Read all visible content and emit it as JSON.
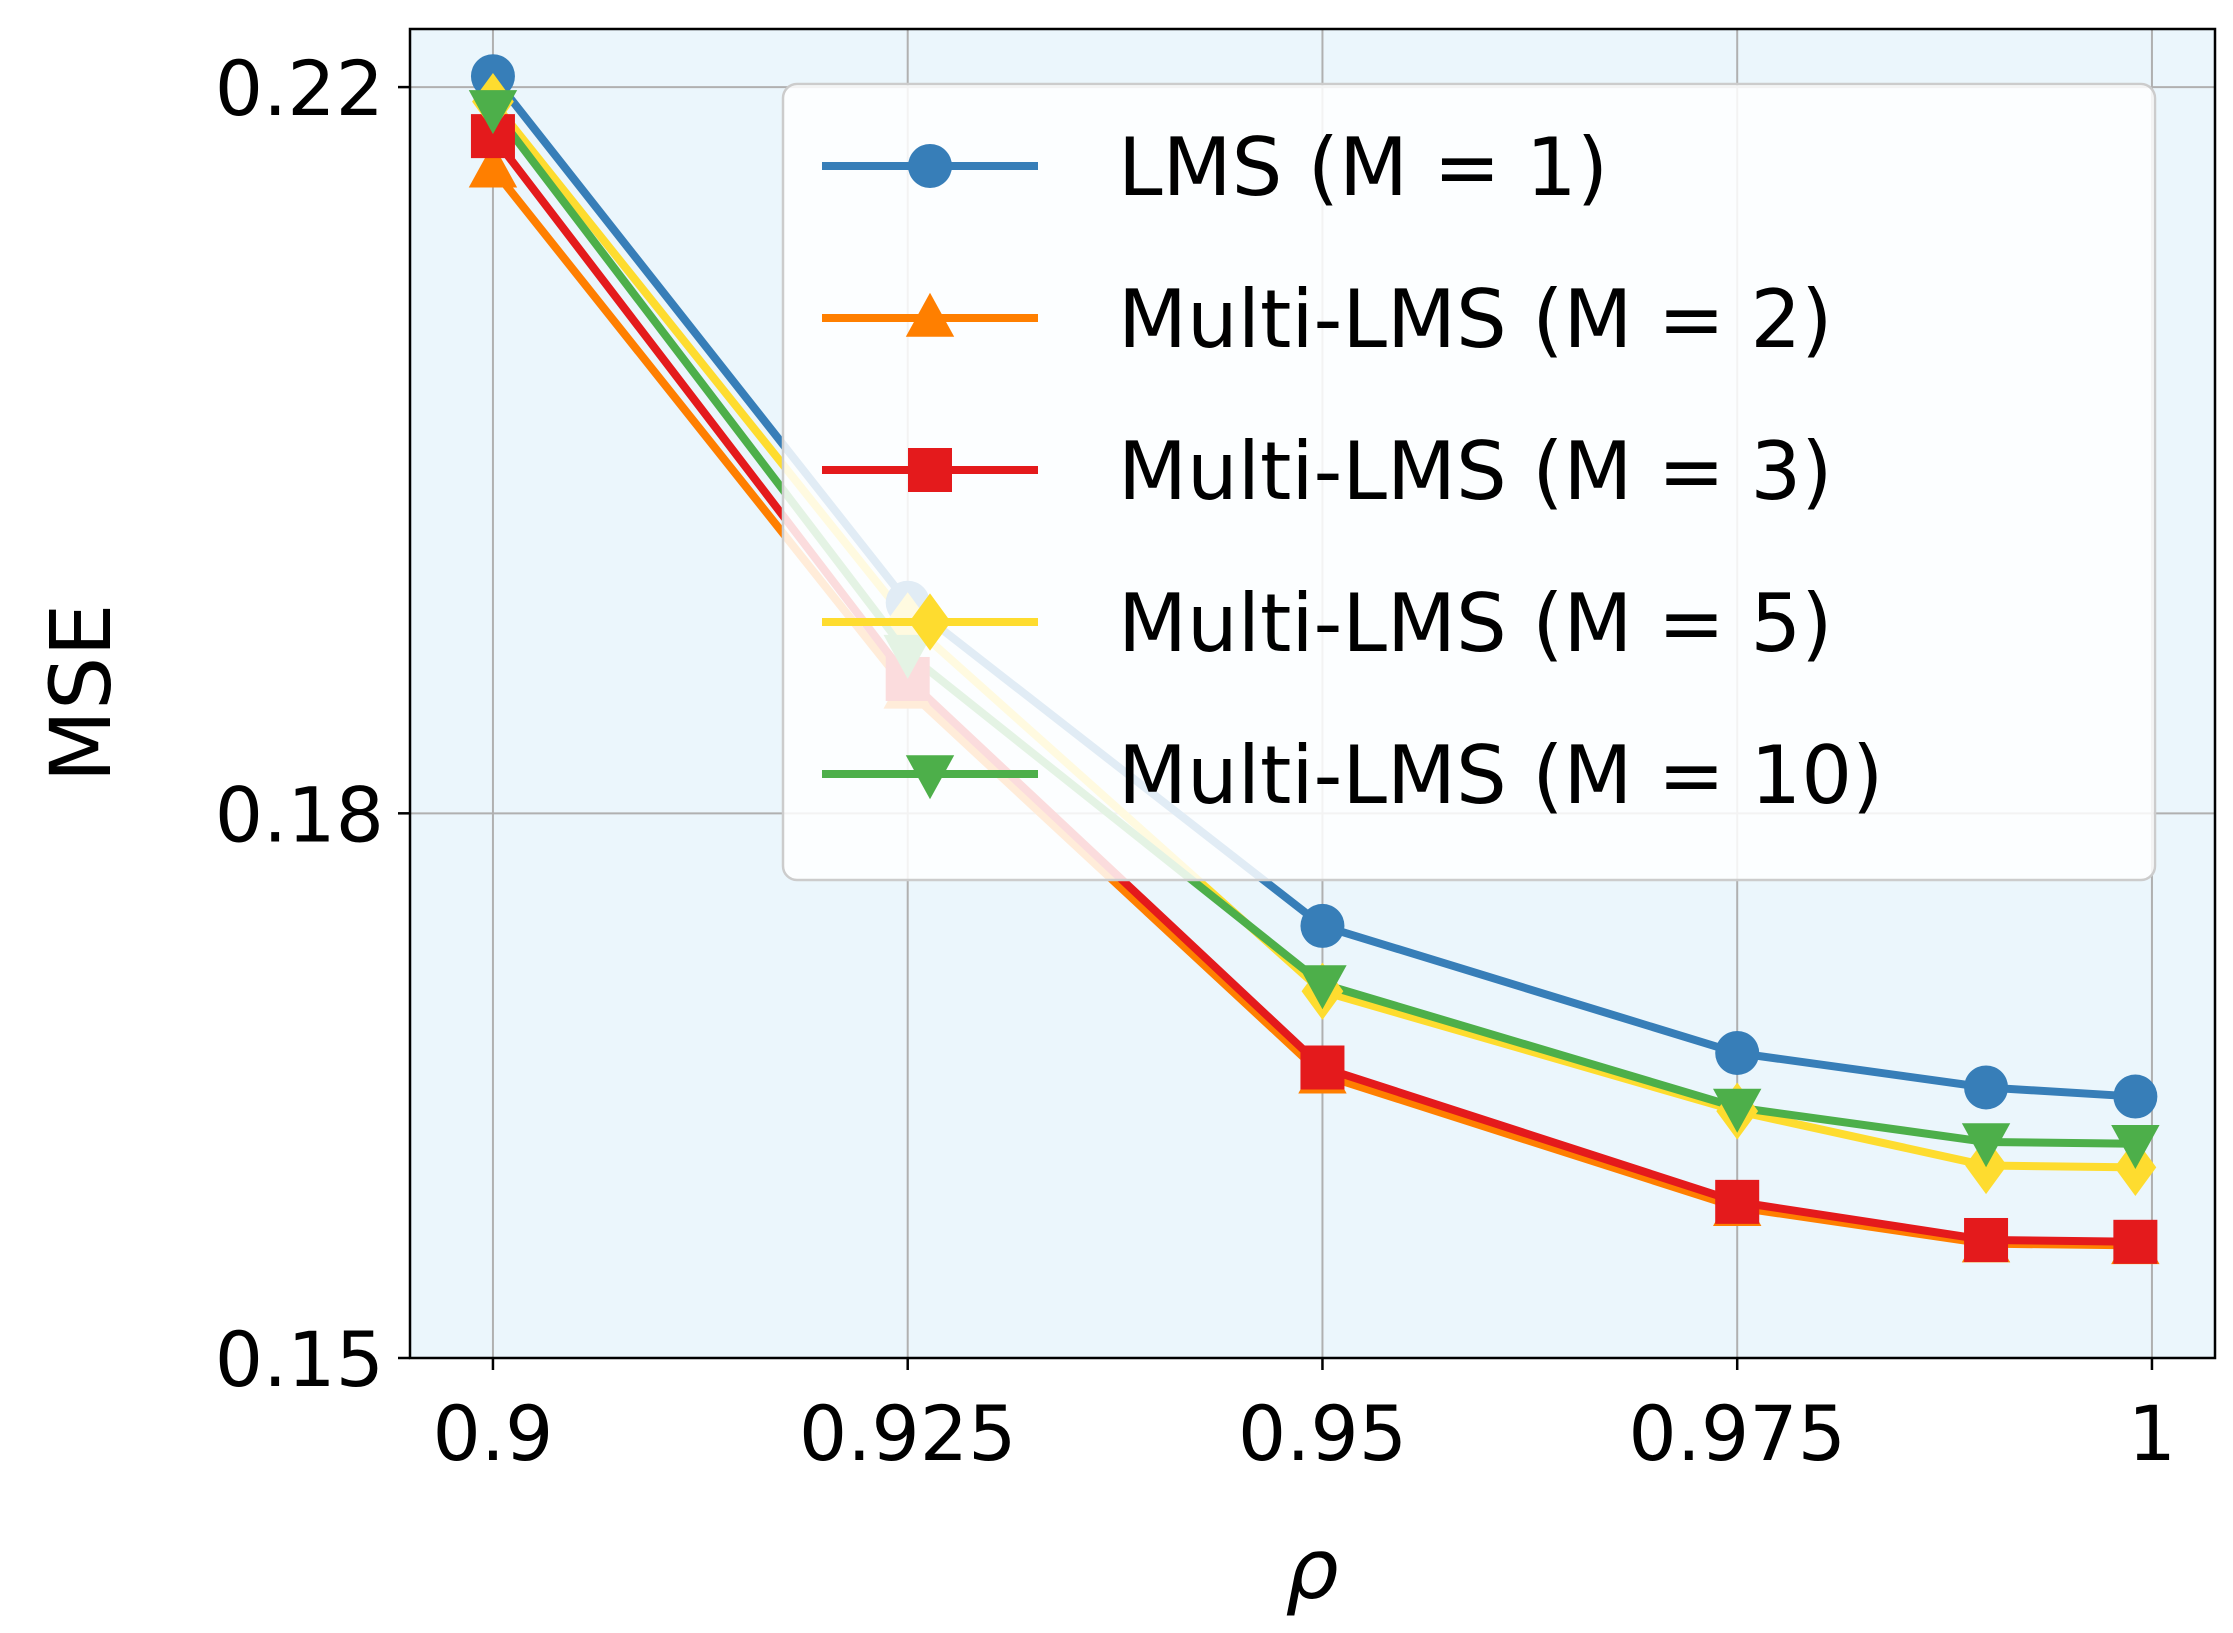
{
  "chart_data": {
    "type": "line",
    "xlabel": "ρ",
    "ylabel": "MSE",
    "x": [
      0.9,
      0.925,
      0.95,
      0.975,
      0.99,
      0.999
    ],
    "xlim": [
      0.895,
      1.0038
    ],
    "ylim": [
      0.15,
      0.2232
    ],
    "xticks": [
      0.9,
      0.925,
      0.95,
      0.975,
      1.0
    ],
    "xtick_labels": [
      "0.9",
      "0.925",
      "0.95",
      "0.975",
      "1"
    ],
    "yticks": [
      0.15,
      0.18,
      0.22
    ],
    "ytick_labels": [
      "0.15",
      "0.18",
      "0.22"
    ],
    "grid": true,
    "legend_position": "upper-right",
    "background_color": "#ebf6fc",
    "series": [
      {
        "name": "LMS (M = 1)",
        "color": "#377eb8",
        "marker": "circle",
        "values": [
          0.2206,
          0.1916,
          0.1738,
          0.1668,
          0.1649,
          0.1644
        ]
      },
      {
        "name": "Multi-LMS (M = 2)",
        "color": "#ff7f00",
        "marker": "triangle-up",
        "values": [
          0.2155,
          0.1868,
          0.1656,
          0.1583,
          0.1563,
          0.1562
        ]
      },
      {
        "name": "Multi-LMS (M = 3)",
        "color": "#e41a1c",
        "marker": "square",
        "values": [
          0.2173,
          0.1874,
          0.166,
          0.1586,
          0.1565,
          0.1564
        ]
      },
      {
        "name": "Multi-LMS (M = 5)",
        "color": "#fedc2f",
        "marker": "diamond",
        "values": [
          0.2192,
          0.1906,
          0.1702,
          0.1636,
          0.1606,
          0.1605
        ]
      },
      {
        "name": "Multi-LMS (M = 10)",
        "color": "#4daf4a",
        "marker": "triangle-down",
        "values": [
          0.2188,
          0.1888,
          0.1706,
          0.1638,
          0.1619,
          0.1618
        ]
      }
    ]
  }
}
